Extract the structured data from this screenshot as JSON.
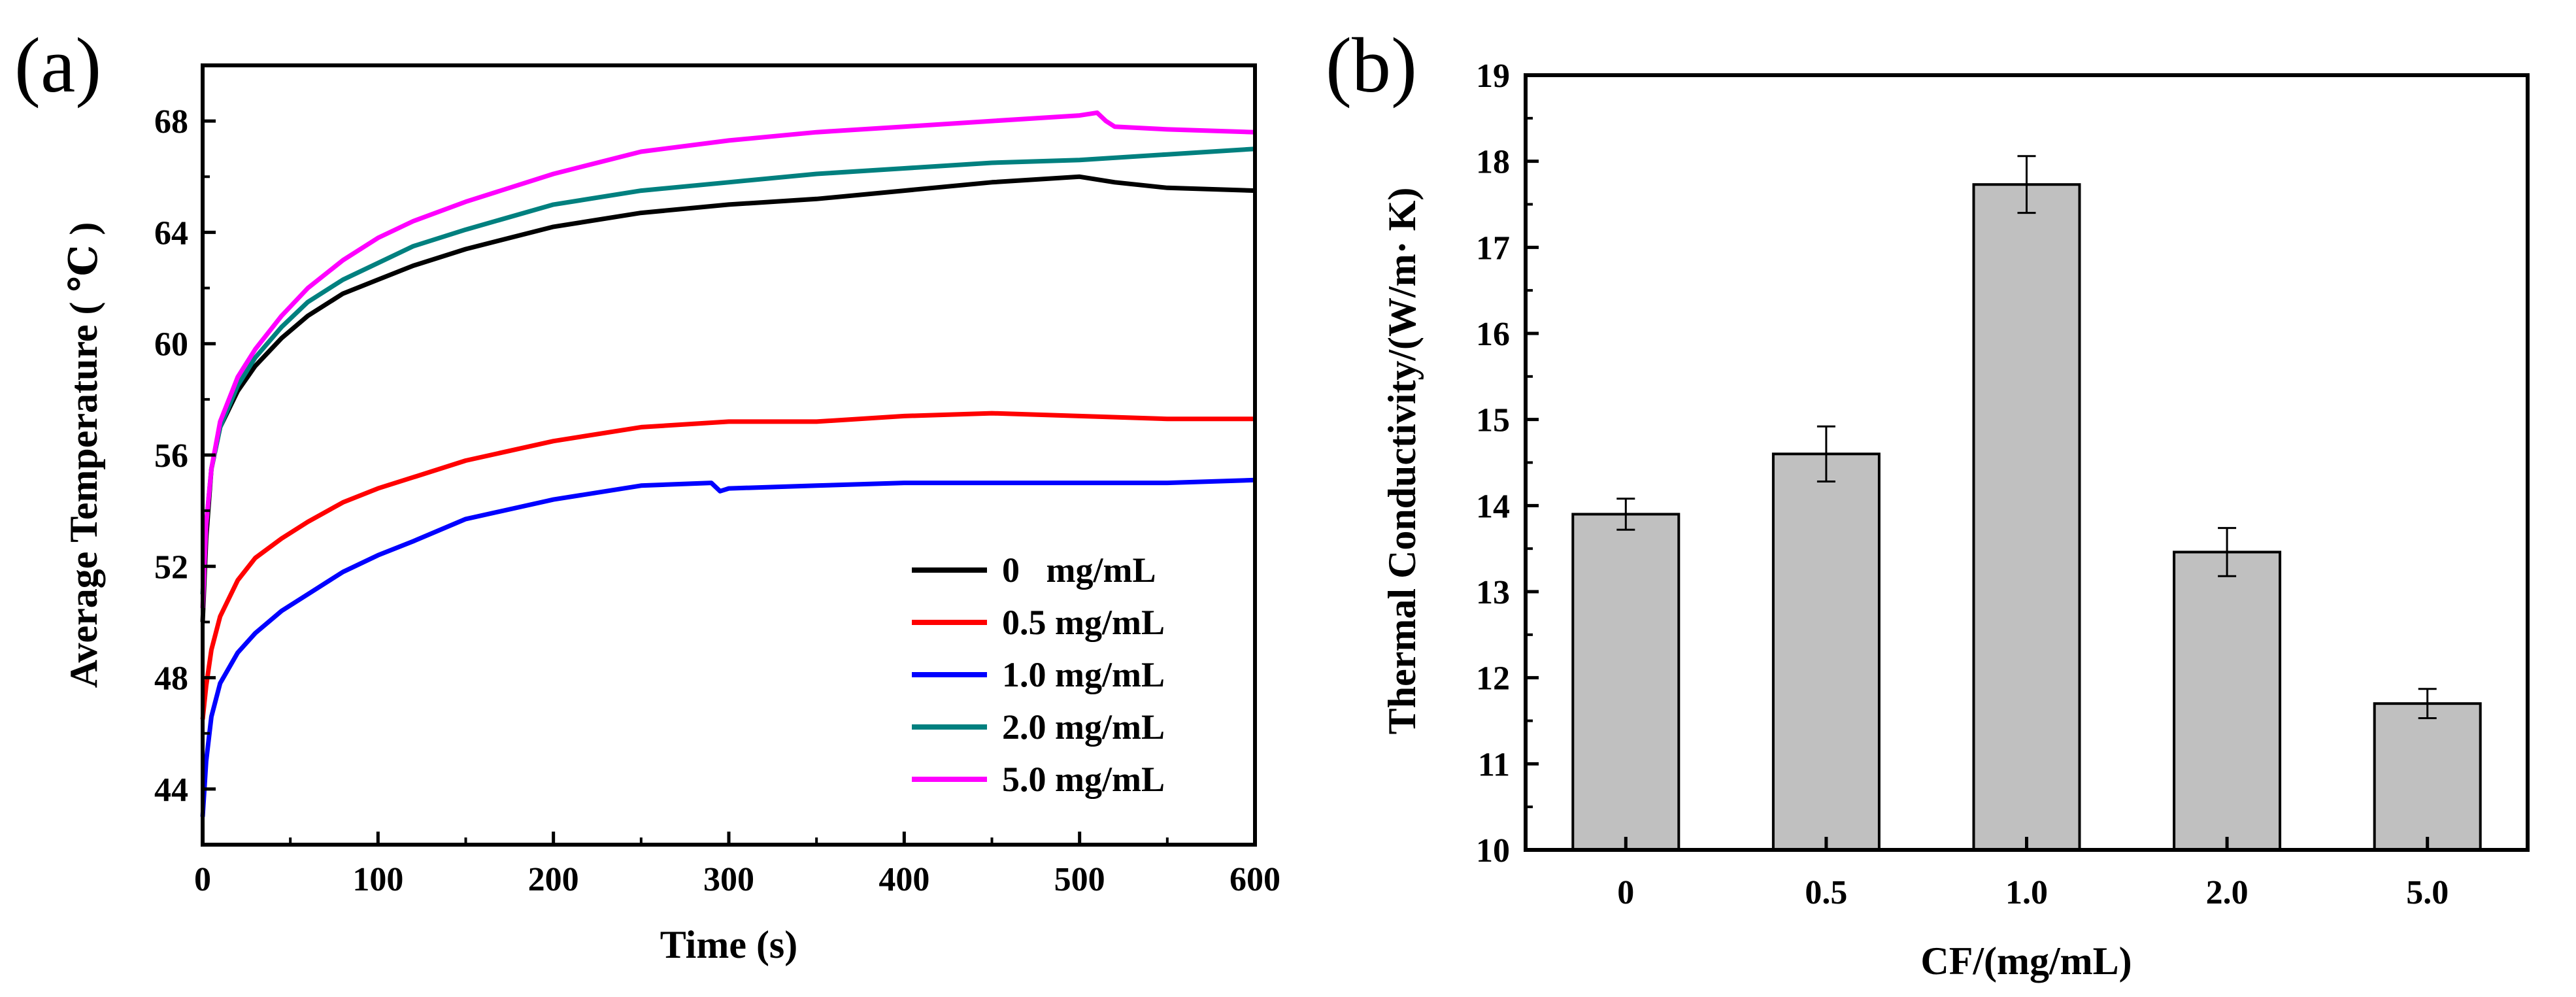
{
  "chart_data": [
    {
      "panel": "(a)",
      "type": "line",
      "title": "",
      "xlabel": "Time (s)",
      "ylabel": "Average Temperature ( ℃ )",
      "xlim": [
        0,
        600
      ],
      "ylim": [
        42,
        70
      ],
      "xticks": [
        0,
        100,
        200,
        300,
        400,
        500,
        600
      ],
      "yticks": [
        44,
        48,
        52,
        56,
        60,
        64,
        68
      ],
      "xtick_labels": [
        "0",
        "100",
        "200",
        "300",
        "400",
        "500",
        "600"
      ],
      "ytick_labels": [
        "44",
        "48",
        "52",
        "56",
        "60",
        "64",
        "68"
      ],
      "legend_position": "lower-right",
      "series": [
        {
          "name": "0   mg/mL",
          "color": "#000000",
          "x": [
            0,
            2,
            5,
            10,
            20,
            30,
            45,
            60,
            80,
            100,
            120,
            150,
            200,
            250,
            300,
            350,
            400,
            450,
            500,
            520,
            550,
            600
          ],
          "values": [
            50.0,
            53.0,
            55.5,
            57.0,
            58.3,
            59.2,
            60.2,
            61.0,
            61.8,
            62.3,
            62.8,
            63.4,
            64.2,
            64.7,
            65.0,
            65.2,
            65.5,
            65.8,
            66.0,
            65.8,
            65.6,
            65.5
          ]
        },
        {
          "name": "0.5 mg/mL",
          "color": "#ff0000",
          "x": [
            0,
            2,
            5,
            10,
            20,
            30,
            45,
            60,
            80,
            100,
            120,
            150,
            200,
            250,
            300,
            350,
            400,
            450,
            500,
            550,
            600
          ],
          "values": [
            46.5,
            47.7,
            49.0,
            50.2,
            51.5,
            52.3,
            53.0,
            53.6,
            54.3,
            54.8,
            55.2,
            55.8,
            56.5,
            57.0,
            57.2,
            57.2,
            57.4,
            57.5,
            57.4,
            57.3,
            57.3
          ]
        },
        {
          "name": "1.0 mg/mL",
          "color": "#0000ff",
          "x": [
            0,
            2,
            5,
            10,
            20,
            30,
            45,
            60,
            80,
            100,
            120,
            150,
            200,
            250,
            290,
            295,
            300,
            350,
            400,
            450,
            500,
            550,
            600
          ],
          "values": [
            43.0,
            45.0,
            46.6,
            47.8,
            48.9,
            49.6,
            50.4,
            51.0,
            51.8,
            52.4,
            52.9,
            53.7,
            54.4,
            54.9,
            55.0,
            54.7,
            54.8,
            54.9,
            55.0,
            55.0,
            55.0,
            55.0,
            55.1
          ]
        },
        {
          "name": "2.0 mg/mL",
          "color": "#00807f",
          "x": [
            0,
            2,
            5,
            10,
            20,
            30,
            45,
            60,
            80,
            100,
            120,
            150,
            200,
            250,
            300,
            350,
            400,
            450,
            500,
            550,
            600
          ],
          "values": [
            51.0,
            53.5,
            55.5,
            57.0,
            58.5,
            59.5,
            60.6,
            61.5,
            62.3,
            62.9,
            63.5,
            64.1,
            65.0,
            65.5,
            65.8,
            66.1,
            66.3,
            66.5,
            66.6,
            66.8,
            67.0
          ]
        },
        {
          "name": "5.0 mg/mL",
          "color": "#ff00ff",
          "x": [
            0,
            2,
            5,
            10,
            20,
            30,
            45,
            60,
            80,
            100,
            120,
            150,
            200,
            250,
            300,
            350,
            400,
            450,
            500,
            510,
            515,
            520,
            550,
            600
          ],
          "values": [
            50.5,
            53.5,
            55.5,
            57.2,
            58.8,
            59.8,
            61.0,
            62.0,
            63.0,
            63.8,
            64.4,
            65.1,
            66.1,
            66.9,
            67.3,
            67.6,
            67.8,
            68.0,
            68.2,
            68.3,
            68.0,
            67.8,
            67.7,
            67.6
          ]
        }
      ]
    },
    {
      "panel": "(b)",
      "type": "bar",
      "title": "",
      "xlabel": "CF/(mg/mL)",
      "ylabel": "Thermal Conductivity/(W/m·  K)",
      "categories": [
        "0",
        "0.5",
        "1.0",
        "2.0",
        "5.0"
      ],
      "values": [
        13.9,
        14.6,
        17.73,
        13.46,
        11.7
      ],
      "errors": [
        0.18,
        0.32,
        0.33,
        0.28,
        0.17
      ],
      "ylim": [
        10,
        19
      ],
      "yticks": [
        10,
        11,
        12,
        13,
        14,
        15,
        16,
        17,
        18,
        19
      ],
      "ytick_labels": [
        "10",
        "11",
        "12",
        "13",
        "14",
        "15",
        "16",
        "17",
        "18",
        "19"
      ],
      "bar_color": "#c0c0c0"
    }
  ]
}
